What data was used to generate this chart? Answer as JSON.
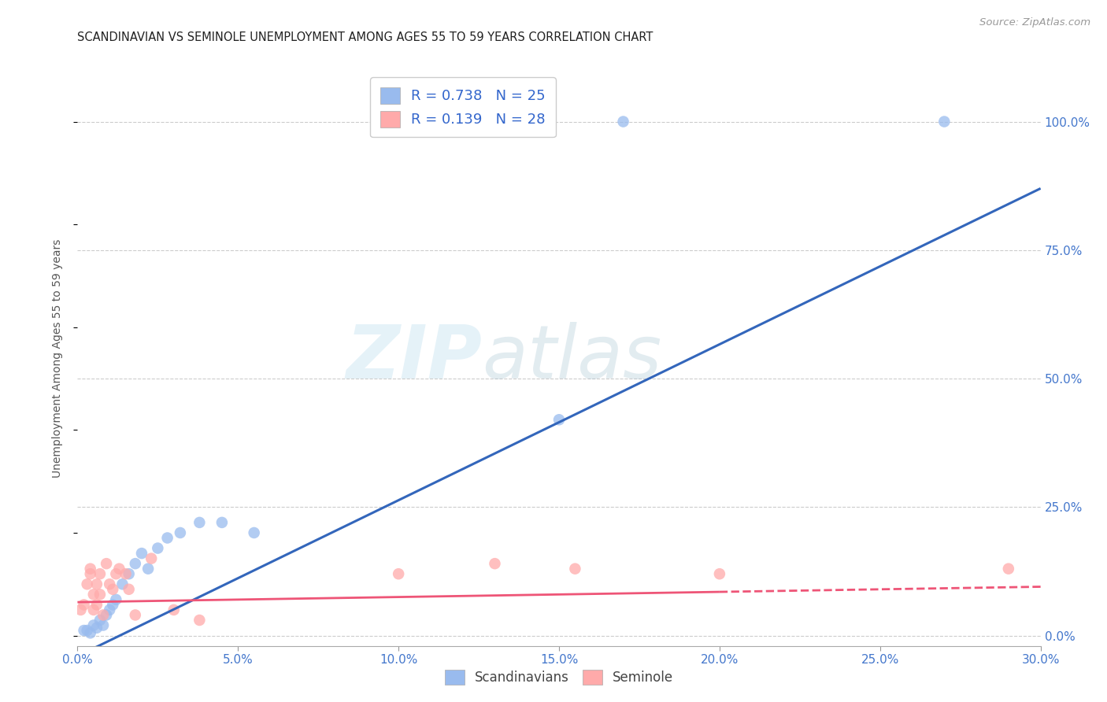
{
  "title": "SCANDINAVIAN VS SEMINOLE UNEMPLOYMENT AMONG AGES 55 TO 59 YEARS CORRELATION CHART",
  "source": "Source: ZipAtlas.com",
  "ylabel": "Unemployment Among Ages 55 to 59 years",
  "xlim": [
    0.0,
    0.3
  ],
  "ylim": [
    -0.02,
    1.1
  ],
  "legend_r1": "R = 0.738",
  "legend_n1": "N = 25",
  "legend_r2": "R = 0.139",
  "legend_n2": "N = 28",
  "blue_color": "#99BBEE",
  "blue_line_color": "#3366BB",
  "pink_color": "#FFAAAA",
  "pink_line_color": "#EE5577",
  "watermark_zip": "ZIP",
  "watermark_atlas": "atlas",
  "scandinavian_x": [
    0.002,
    0.003,
    0.004,
    0.005,
    0.006,
    0.007,
    0.008,
    0.009,
    0.01,
    0.011,
    0.012,
    0.014,
    0.016,
    0.018,
    0.02,
    0.022,
    0.025,
    0.028,
    0.032,
    0.038,
    0.045,
    0.055,
    0.15,
    0.17,
    0.27
  ],
  "scandinavian_y": [
    0.01,
    0.01,
    0.005,
    0.02,
    0.015,
    0.03,
    0.02,
    0.04,
    0.05,
    0.06,
    0.07,
    0.1,
    0.12,
    0.14,
    0.16,
    0.13,
    0.17,
    0.19,
    0.2,
    0.22,
    0.22,
    0.2,
    0.42,
    1.0,
    1.0
  ],
  "seminole_x": [
    0.001,
    0.002,
    0.003,
    0.004,
    0.004,
    0.005,
    0.005,
    0.006,
    0.006,
    0.007,
    0.007,
    0.008,
    0.009,
    0.01,
    0.011,
    0.012,
    0.013,
    0.015,
    0.016,
    0.018,
    0.023,
    0.03,
    0.038,
    0.1,
    0.13,
    0.155,
    0.2,
    0.29
  ],
  "seminole_y": [
    0.05,
    0.06,
    0.1,
    0.12,
    0.13,
    0.05,
    0.08,
    0.06,
    0.1,
    0.12,
    0.08,
    0.04,
    0.14,
    0.1,
    0.09,
    0.12,
    0.13,
    0.12,
    0.09,
    0.04,
    0.15,
    0.05,
    0.03,
    0.12,
    0.14,
    0.13,
    0.12,
    0.13
  ],
  "sc_line_x": [
    0.0,
    0.3
  ],
  "sc_line_y": [
    -0.04,
    0.87
  ],
  "sem_line_x": [
    0.0,
    0.3
  ],
  "sem_line_y": [
    0.065,
    0.095
  ]
}
